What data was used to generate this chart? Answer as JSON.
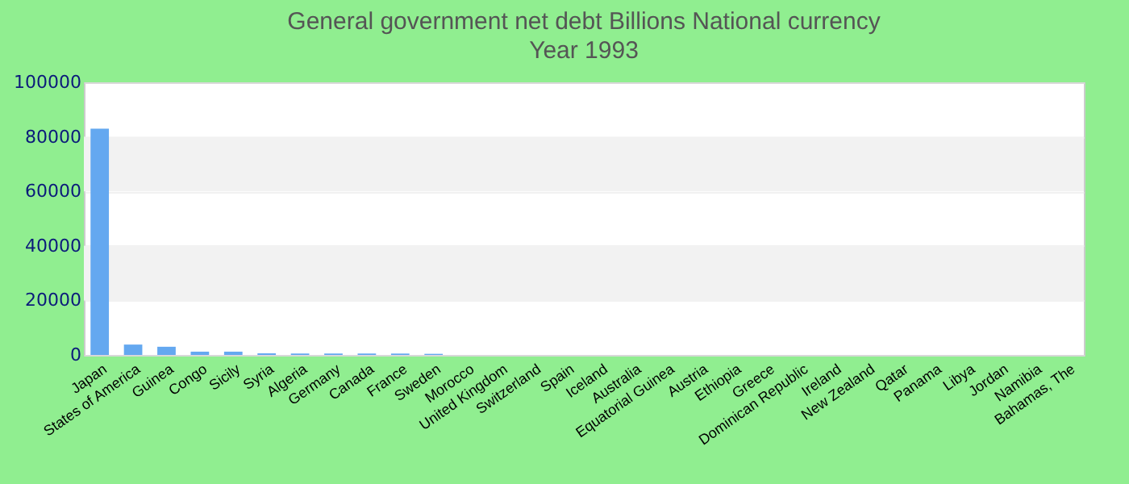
{
  "chart_data": {
    "type": "bar",
    "title": "General government net debt Billions National currency",
    "subtitle": "Year 1993",
    "categories": [
      "Japan",
      "States of America",
      "Guinea",
      "Congo",
      "Sicily",
      "Syria",
      "Algeria",
      "Germany",
      "Canada",
      "France",
      "Sweden",
      "Morocco",
      "United Kingdom",
      "Switzerland",
      "Spain",
      "Iceland",
      "Australia",
      "Equatorial Guinea",
      "Austria",
      "Ethiopia",
      "Greece",
      "Dominican Republic",
      "Ireland",
      "New Zealand",
      "Qatar",
      "Panama",
      "Libya",
      "Jordan",
      "Namibia",
      "Bahamas, The"
    ],
    "values": [
      83000,
      3800,
      3000,
      1200,
      1200,
      600,
      500,
      500,
      500,
      500,
      400,
      0,
      0,
      0,
      0,
      0,
      0,
      0,
      0,
      0,
      0,
      0,
      0,
      0,
      0,
      0,
      0,
      0,
      0,
      0
    ],
    "color": "#64a8f0",
    "ylim": [
      0,
      100000
    ],
    "yticks": [
      0,
      20000,
      40000,
      60000,
      80000,
      100000
    ],
    "grid": "y"
  }
}
